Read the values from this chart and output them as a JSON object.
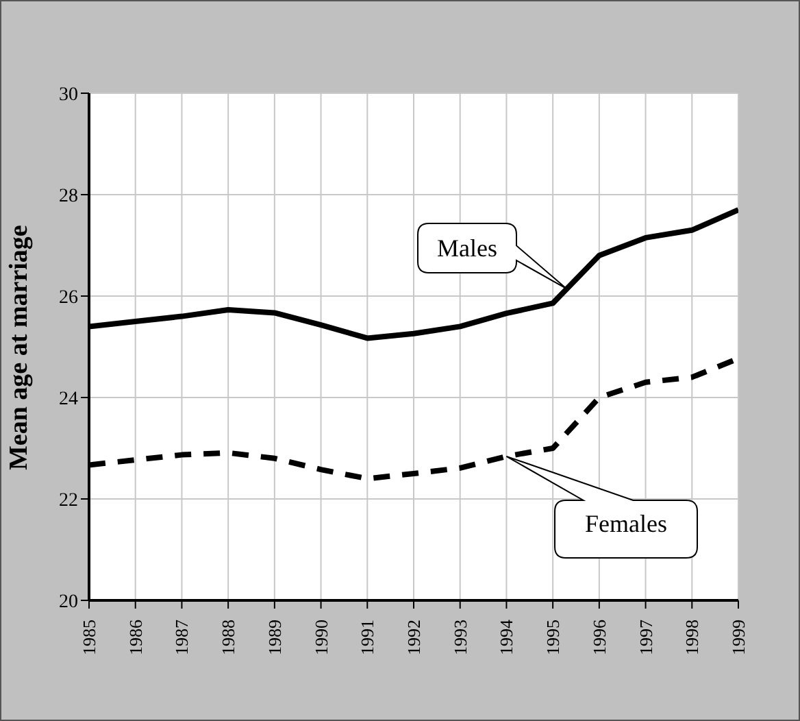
{
  "chart_data": {
    "type": "line",
    "ylabel": "Mean age at marriage",
    "x": [
      1985,
      1986,
      1987,
      1988,
      1989,
      1990,
      1991,
      1992,
      1993,
      1994,
      1995,
      1996,
      1997,
      1998,
      1999
    ],
    "series": [
      {
        "name": "Males",
        "color": "#000000",
        "line_style": "solid",
        "values": [
          25.4,
          25.5,
          25.6,
          25.73,
          25.67,
          25.43,
          25.17,
          25.26,
          25.4,
          25.66,
          25.86,
          26.8,
          27.15,
          27.3,
          27.7
        ]
      },
      {
        "name": "Females",
        "color": "#000000",
        "line_style": "dashed",
        "values": [
          22.67,
          22.77,
          22.87,
          22.91,
          22.8,
          22.58,
          22.4,
          22.5,
          22.61,
          22.84,
          23.0,
          24.0,
          24.3,
          24.4,
          24.77
        ]
      }
    ],
    "xlim": [
      1985,
      1999
    ],
    "xticks": [
      1985,
      1986,
      1987,
      1988,
      1989,
      1990,
      1991,
      1992,
      1993,
      1994,
      1995,
      1996,
      1997,
      1998,
      1999
    ],
    "ylim": [
      20,
      30
    ],
    "yticks": [
      20,
      22,
      24,
      26,
      28,
      30
    ],
    "grid": true,
    "legend": false,
    "marker": "none"
  }
}
